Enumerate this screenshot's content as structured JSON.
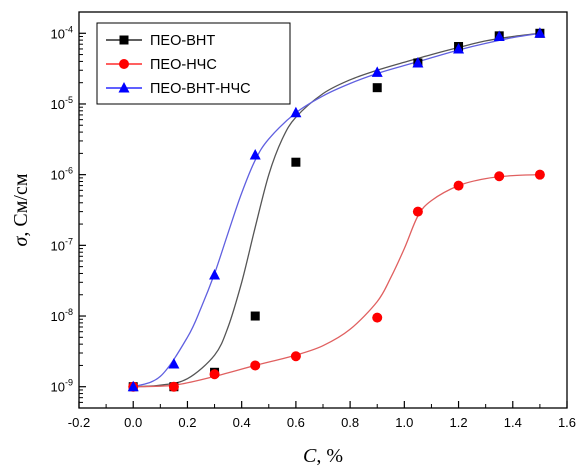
{
  "chart_data": {
    "type": "scatter",
    "xlabel_var": "C",
    "xlabel_unit": ", %",
    "ylabel_var": "σ",
    "ylabel_unit": ", См/см",
    "xlim": [
      -0.2,
      1.6
    ],
    "x_ticks": [
      -0.2,
      0.0,
      0.2,
      0.4,
      0.6,
      0.8,
      1.0,
      1.2,
      1.4,
      1.6
    ],
    "x_tick_labels": [
      "-0.2",
      "0.0",
      "0.2",
      "0.4",
      "0.6",
      "0.8",
      "1.0",
      "1.2",
      "1.4",
      "1.6"
    ],
    "y_scale": "log",
    "ylim": [
      5e-10,
      0.0002
    ],
    "y_tick_exponents": [
      -9,
      -8,
      -7,
      -6,
      -5,
      -4
    ],
    "y_tick_base": "10",
    "grid": false,
    "legend_position": "top-left",
    "series": [
      {
        "name": "ПЕО-ВНТ",
        "color": "#000000",
        "marker": "square",
        "x": [
          0.0,
          0.15,
          0.3,
          0.45,
          0.6,
          0.9,
          1.05,
          1.2,
          1.35,
          1.5
        ],
        "y": [
          1e-09,
          1e-09,
          1.6e-09,
          1e-08,
          1.5e-06,
          1.7e-05,
          3.8e-05,
          6.5e-05,
          9.2e-05,
          0.0001
        ]
      },
      {
        "name": "ПЕО-НЧС",
        "color": "#ff0000",
        "marker": "circle",
        "x": [
          0.0,
          0.15,
          0.3,
          0.45,
          0.6,
          0.9,
          1.05,
          1.2,
          1.35,
          1.5
        ],
        "y": [
          1e-09,
          1e-09,
          1.5e-09,
          2e-09,
          2.7e-09,
          9.5e-09,
          3e-07,
          7e-07,
          9.5e-07,
          1e-06
        ]
      },
      {
        "name": "ПЕО-ВНТ-НЧС",
        "color": "#0000ff",
        "marker": "triangle",
        "x": [
          0.0,
          0.15,
          0.3,
          0.45,
          0.6,
          0.9,
          1.05,
          1.2,
          1.35,
          1.5
        ],
        "y": [
          1e-09,
          2.1e-09,
          3.8e-08,
          1.9e-06,
          7.5e-06,
          2.8e-05,
          3.8e-05,
          6e-05,
          9e-05,
          0.0001
        ]
      }
    ],
    "fit_curves": [
      {
        "series": "ПЕО-ВНТ",
        "color": "#555555",
        "x": [
          0.0,
          0.1,
          0.2,
          0.3,
          0.35,
          0.4,
          0.45,
          0.5,
          0.55,
          0.6,
          0.7,
          0.8,
          0.9,
          1.0,
          1.1,
          1.2,
          1.3,
          1.4,
          1.5
        ],
        "y": [
          1e-09,
          1.05e-09,
          1.3e-09,
          2.8e-09,
          7e-09,
          3e-08,
          1.8e-07,
          1e-06,
          3.2e-06,
          6.5e-06,
          1.4e-05,
          2.2e-05,
          3e-05,
          3.9e-05,
          5e-05,
          6.3e-05,
          7.8e-05,
          9e-05,
          0.0001
        ]
      },
      {
        "series": "ПЕО-НЧС",
        "color": "#e06060",
        "x": [
          0.0,
          0.15,
          0.3,
          0.45,
          0.6,
          0.7,
          0.8,
          0.9,
          0.95,
          1.0,
          1.05,
          1.1,
          1.2,
          1.3,
          1.4,
          1.5
        ],
        "y": [
          1e-09,
          1.05e-09,
          1.4e-09,
          2e-09,
          2.8e-09,
          3.8e-09,
          6.5e-09,
          1.6e-08,
          3.5e-08,
          9e-08,
          2.6e-07,
          4.3e-07,
          7e-07,
          8.8e-07,
          9.7e-07,
          1e-06
        ]
      },
      {
        "series": "ПЕО-ВНТ-НЧС",
        "color": "#6060e0",
        "x": [
          0.0,
          0.1,
          0.2,
          0.25,
          0.3,
          0.35,
          0.4,
          0.45,
          0.5,
          0.6,
          0.7,
          0.8,
          0.9,
          1.0,
          1.1,
          1.2,
          1.3,
          1.4,
          1.5
        ],
        "y": [
          1e-09,
          1.4e-09,
          5e-09,
          1.3e-08,
          4e-08,
          1.5e-07,
          5.5e-07,
          1.6e-06,
          3.2e-06,
          7.5e-06,
          1.3e-05,
          1.95e-05,
          2.7e-05,
          3.5e-05,
          4.5e-05,
          5.8e-05,
          7.2e-05,
          8.7e-05,
          0.0001
        ]
      }
    ]
  }
}
